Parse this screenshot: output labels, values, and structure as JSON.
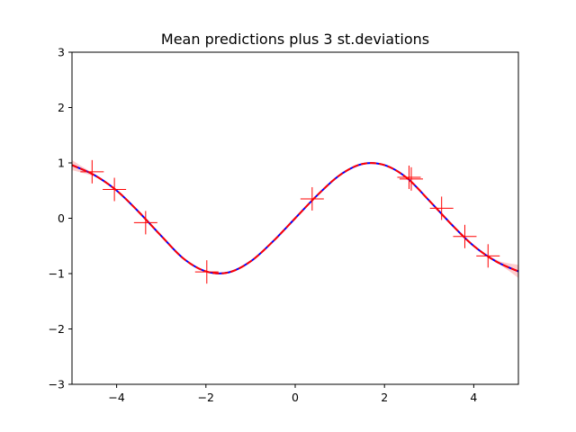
{
  "chart_data": {
    "type": "line",
    "title": "Mean predictions plus 3 st.deviations",
    "xlabel": "",
    "ylabel": "",
    "xlim": [
      -5,
      5
    ],
    "ylim": [
      -3,
      3
    ],
    "x_ticks": [
      -4,
      -2,
      0,
      2,
      4
    ],
    "y_ticks": [
      -3,
      -2,
      -1,
      0,
      1,
      2,
      3
    ],
    "x_tick_labels": [
      "−4",
      "−2",
      "0",
      "2",
      "4"
    ],
    "y_tick_labels": [
      "−3",
      "−2",
      "−1",
      "0",
      "1",
      "2",
      "3"
    ],
    "grid": false,
    "series": [
      {
        "role": "true-function",
        "style": "solid",
        "color": "#0000ff",
        "x": [
          -5.0,
          -4.5,
          -4.0,
          -3.5,
          -3.0,
          -2.5,
          -2.0,
          -1.5,
          -1.0,
          -0.5,
          0.0,
          0.5,
          1.0,
          1.5,
          2.0,
          2.5,
          3.0,
          3.5,
          4.0,
          4.5,
          5.0
        ],
        "y": [
          0.96,
          0.78,
          0.5,
          0.11,
          -0.32,
          -0.73,
          -0.96,
          -0.98,
          -0.78,
          -0.42,
          0.0,
          0.42,
          0.78,
          0.98,
          0.96,
          0.73,
          0.32,
          -0.11,
          -0.5,
          -0.78,
          -0.96
        ]
      },
      {
        "role": "mean-prediction",
        "style": "dashed",
        "color": "#ff0000",
        "x": [
          -5.0,
          -4.5,
          -4.0,
          -3.5,
          -3.0,
          -2.5,
          -2.0,
          -1.5,
          -1.0,
          -0.5,
          0.0,
          0.5,
          1.0,
          1.5,
          2.0,
          2.5,
          3.0,
          3.5,
          4.0,
          4.5,
          5.0
        ],
        "y": [
          0.96,
          0.78,
          0.5,
          0.11,
          -0.32,
          -0.73,
          -0.96,
          -0.98,
          -0.78,
          -0.42,
          0.0,
          0.42,
          0.78,
          0.98,
          0.96,
          0.73,
          0.32,
          -0.11,
          -0.5,
          -0.78,
          -0.96
        ]
      }
    ],
    "band": {
      "role": "plus-minus-3-std",
      "color": "#ff9999",
      "x": [
        -5.0,
        -4.8,
        -4.5,
        -4.0,
        4.3,
        4.6,
        4.8,
        5.0
      ],
      "half_width": [
        0.09,
        0.06,
        0.02,
        0.0,
        0.0,
        0.03,
        0.07,
        0.12
      ]
    },
    "observations": {
      "marker": "+",
      "color": "#ff0000",
      "x": [
        -4.55,
        -4.05,
        -3.35,
        -1.98,
        0.38,
        2.55,
        2.6,
        3.28,
        3.8,
        4.32
      ],
      "y": [
        0.84,
        0.52,
        -0.08,
        -0.97,
        0.35,
        0.74,
        0.71,
        0.18,
        -0.33,
        -0.68
      ]
    }
  }
}
